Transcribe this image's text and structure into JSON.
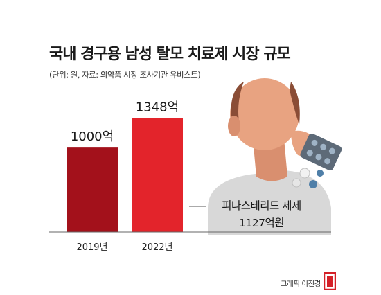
{
  "header": {
    "title": "국내 경구용 남성 탈모 치료제 시장 규모",
    "subtitle": "(단위: 원, 자료: 의약품 시장 조사기관 유비스트)"
  },
  "chart_data": {
    "type": "bar",
    "categories": [
      "2019년",
      "2022년"
    ],
    "values": [
      1000,
      1348
    ],
    "value_labels": [
      "1000억",
      "1348억"
    ],
    "unit": "억",
    "ylim": [
      0,
      1600
    ],
    "colors": [
      "#a3111b",
      "#e3242b"
    ],
    "annotation": {
      "lines": [
        "피나스테리드 제제",
        "1127억원"
      ],
      "value": 1127
    }
  },
  "colors": {
    "bar_2019": "#a3111b",
    "bar_2022": "#e3242b",
    "logo_red": "#d42027"
  },
  "footer": {
    "credit": "그래픽 이진경"
  },
  "icons": [
    "bald-man-illustration",
    "pill-blister-pack-icon",
    "pills-icon",
    "brand-logo-icon"
  ]
}
